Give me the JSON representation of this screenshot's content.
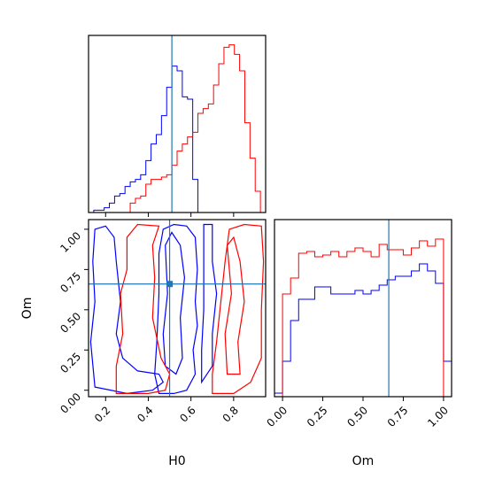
{
  "chart_data": {
    "type": "corner",
    "colors": {
      "series_a": "#0000ff",
      "series_b": "#ff0000",
      "truth": "#1f77b4"
    },
    "truth": {
      "H0": 0.5,
      "Om": 0.66
    },
    "hist_H0": {
      "type": "step-histogram",
      "xlim": [
        0.1,
        0.95
      ],
      "bins": [
        0.1,
        0.125,
        0.15,
        0.175,
        0.2,
        0.225,
        0.25,
        0.275,
        0.3,
        0.325,
        0.35,
        0.375,
        0.4,
        0.425,
        0.45,
        0.475,
        0.5,
        0.525,
        0.55,
        0.575,
        0.6,
        0.625,
        0.65,
        0.675,
        0.7,
        0.725,
        0.75,
        0.775,
        0.8,
        0.825,
        0.85,
        0.875,
        0.9,
        0.925,
        0.95
      ],
      "series": [
        {
          "color": "blue",
          "counts": [
            0,
            1,
            1,
            2,
            4,
            7,
            8,
            11,
            13,
            14,
            16,
            22,
            29,
            33,
            41,
            53,
            62,
            60,
            49,
            48,
            14,
            0,
            0,
            0,
            0,
            0,
            0,
            0,
            0,
            0,
            0,
            0,
            0,
            0
          ]
        },
        {
          "color": "red",
          "counts": [
            0,
            0,
            0,
            0,
            0,
            0,
            0,
            0,
            4,
            6,
            7,
            12,
            14,
            14,
            15,
            16,
            20,
            26,
            29,
            32,
            34,
            42,
            44,
            46,
            54,
            63,
            70,
            71,
            67,
            60,
            38,
            23,
            9,
            0
          ]
        }
      ],
      "ymax": 75
    },
    "hist_Om": {
      "type": "step-histogram",
      "xlim": [
        -0.05,
        1.05
      ],
      "bins": [
        -0.05,
        0.0,
        0.05,
        0.1,
        0.15,
        0.2,
        0.25,
        0.3,
        0.35,
        0.4,
        0.45,
        0.5,
        0.55,
        0.6,
        0.65,
        0.7,
        0.75,
        0.8,
        0.85,
        0.9,
        0.95,
        1.0,
        1.05
      ],
      "series": [
        {
          "color": "blue",
          "counts": [
            2,
            20,
            43,
            55,
            55,
            62,
            62,
            58,
            58,
            58,
            60,
            58,
            60,
            63,
            66,
            68,
            68,
            71,
            75,
            71,
            64,
            20
          ]
        },
        {
          "color": "red",
          "counts": [
            0,
            58,
            67,
            81,
            82,
            79,
            80,
            82,
            79,
            82,
            84,
            82,
            79,
            86,
            83,
            83,
            80,
            84,
            88,
            85,
            89,
            0
          ]
        }
      ],
      "ymax": 100
    },
    "scatter_2d": {
      "xlabel": "H0",
      "ylabel": "Om",
      "xlim": [
        0.12,
        0.95
      ],
      "ylim": [
        -0.04,
        1.06
      ],
      "x_ticks": [
        "0.2",
        "0.4",
        "0.6",
        "0.8"
      ],
      "y_ticks": [
        "0.00",
        "0.25",
        "0.50",
        "0.75",
        "1.00"
      ],
      "contours": [
        {
          "color": "blue",
          "points": [
            [
              0.45,
              -0.02
            ],
            [
              0.52,
              -0.02
            ],
            [
              0.58,
              0.0
            ],
            [
              0.62,
              0.1
            ],
            [
              0.61,
              0.25
            ],
            [
              0.63,
              0.4
            ],
            [
              0.62,
              0.55
            ],
            [
              0.63,
              0.75
            ],
            [
              0.62,
              0.95
            ],
            [
              0.58,
              1.02
            ],
            [
              0.52,
              1.03
            ],
            [
              0.47,
              1.0
            ],
            [
              0.45,
              0.85
            ],
            [
              0.45,
              0.6
            ],
            [
              0.44,
              0.3
            ],
            [
              0.43,
              0.1
            ],
            [
              0.45,
              -0.02
            ]
          ]
        },
        {
          "color": "blue",
          "points": [
            [
              0.48,
              0.15
            ],
            [
              0.53,
              0.1
            ],
            [
              0.56,
              0.2
            ],
            [
              0.55,
              0.45
            ],
            [
              0.57,
              0.7
            ],
            [
              0.55,
              0.9
            ],
            [
              0.51,
              0.98
            ],
            [
              0.48,
              0.9
            ],
            [
              0.49,
              0.6
            ],
            [
              0.47,
              0.35
            ],
            [
              0.48,
              0.15
            ]
          ]
        },
        {
          "color": "blue",
          "points": [
            [
              0.15,
              0.02
            ],
            [
              0.3,
              -0.02
            ],
            [
              0.42,
              0.0
            ],
            [
              0.47,
              0.05
            ],
            [
              0.45,
              0.1
            ],
            [
              0.35,
              0.12
            ],
            [
              0.28,
              0.2
            ],
            [
              0.25,
              0.35
            ],
            [
              0.27,
              0.55
            ],
            [
              0.25,
              0.8
            ],
            [
              0.24,
              0.95
            ],
            [
              0.2,
              1.02
            ],
            [
              0.15,
              1.0
            ],
            [
              0.14,
              0.8
            ],
            [
              0.15,
              0.55
            ],
            [
              0.13,
              0.3
            ],
            [
              0.15,
              0.02
            ]
          ]
        },
        {
          "color": "blue",
          "points": [
            [
              0.65,
              0.05
            ],
            [
              0.7,
              0.15
            ],
            [
              0.7,
              0.35
            ],
            [
              0.72,
              0.6
            ],
            [
              0.7,
              0.8
            ],
            [
              0.7,
              1.03
            ],
            [
              0.66,
              1.03
            ],
            [
              0.66,
              0.8
            ],
            [
              0.66,
              0.5
            ],
            [
              0.65,
              0.25
            ],
            [
              0.65,
              0.05
            ]
          ]
        },
        {
          "color": "red",
          "points": [
            [
              0.7,
              -0.02
            ],
            [
              0.8,
              -0.02
            ],
            [
              0.88,
              0.05
            ],
            [
              0.93,
              0.2
            ],
            [
              0.93,
              0.5
            ],
            [
              0.94,
              0.8
            ],
            [
              0.93,
              1.02
            ],
            [
              0.85,
              1.03
            ],
            [
              0.78,
              1.0
            ],
            [
              0.76,
              0.8
            ],
            [
              0.74,
              0.55
            ],
            [
              0.72,
              0.3
            ],
            [
              0.7,
              0.1
            ],
            [
              0.7,
              -0.02
            ]
          ]
        },
        {
          "color": "red",
          "points": [
            [
              0.25,
              -0.02
            ],
            [
              0.4,
              -0.02
            ],
            [
              0.48,
              0.0
            ],
            [
              0.5,
              0.1
            ],
            [
              0.46,
              0.2
            ],
            [
              0.42,
              0.45
            ],
            [
              0.43,
              0.7
            ],
            [
              0.42,
              0.9
            ],
            [
              0.45,
              1.02
            ],
            [
              0.35,
              1.03
            ],
            [
              0.3,
              0.95
            ],
            [
              0.3,
              0.75
            ],
            [
              0.27,
              0.6
            ],
            [
              0.28,
              0.35
            ],
            [
              0.25,
              0.15
            ],
            [
              0.25,
              -0.02
            ]
          ]
        },
        {
          "color": "red",
          "points": [
            [
              0.77,
              0.1
            ],
            [
              0.83,
              0.1
            ],
            [
              0.82,
              0.3
            ],
            [
              0.85,
              0.55
            ],
            [
              0.83,
              0.8
            ],
            [
              0.8,
              0.95
            ],
            [
              0.77,
              0.9
            ],
            [
              0.79,
              0.6
            ],
            [
              0.76,
              0.35
            ],
            [
              0.77,
              0.1
            ]
          ]
        }
      ]
    },
    "x_ticks_H0_top": [
      "0.2",
      "0.4",
      "0.6",
      "0.8"
    ],
    "x_ticks_Om": [
      "0.00",
      "0.25",
      "0.50",
      "0.75",
      "1.00"
    ],
    "xlabel_Om": "Om"
  }
}
